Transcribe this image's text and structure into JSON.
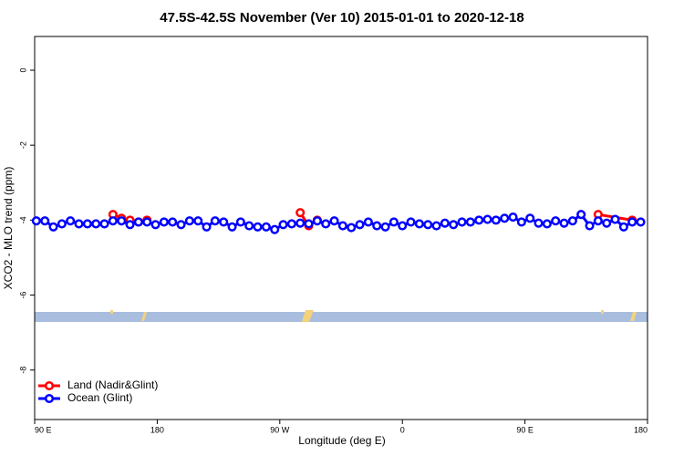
{
  "chart_data": {
    "type": "line",
    "title": "47.5S-42.5S November (Ver 10)   2015-01-01 to 2020-12-18",
    "x_label": "Longitude (deg E)",
    "y_label": "XCO2 - MLO trend (ppm)",
    "xlim": [
      90,
      540
    ],
    "ylim": [
      -9.32,
      0.9
    ],
    "xticks": [
      {
        "value": 90,
        "label": "90 E"
      },
      {
        "value": 180,
        "label": "180"
      },
      {
        "value": 270,
        "label": "90 W"
      },
      {
        "value": 360,
        "label": "0"
      },
      {
        "value": 450,
        "label": "90 E"
      },
      {
        "value": 540,
        "label": "180"
      }
    ],
    "yticks": [
      0,
      -2,
      -4,
      -6,
      -8
    ],
    "legend": "bottom-left",
    "series": [
      {
        "name": "Land (Nadir&Glint)",
        "color": "#ff0000",
        "x": [
          147.5,
          153.75,
          160,
          166.25,
          172.5,
          230,
          285,
          291.25,
          297.5,
          400,
          503.75,
          528.75
        ],
        "values": [
          -3.85,
          -3.95,
          -4.0,
          -4.05,
          -4.0,
          null,
          -3.8,
          -4.15,
          -4.0,
          null,
          -3.85,
          -4.0
        ]
      },
      {
        "name": "Ocean (Glint)",
        "color": "#0000ff",
        "x": [
          91.25,
          97.5,
          103.75,
          110,
          116.25,
          122.5,
          128.75,
          135,
          141.25,
          147.5,
          153.75,
          160,
          166.25,
          172.5,
          178.75,
          185,
          191.25,
          197.5,
          203.75,
          210,
          216.25,
          222.5,
          228.75,
          235,
          241.25,
          247.5,
          253.75,
          260,
          266.25,
          272.5,
          278.75,
          285,
          291.25,
          297.5,
          303.75,
          310,
          316.25,
          322.5,
          328.75,
          335,
          341.25,
          347.5,
          353.75,
          360,
          366.25,
          372.5,
          378.75,
          385,
          391.25,
          397.5,
          403.75,
          410,
          416.25,
          422.5,
          428.75,
          435,
          441.25,
          447.5,
          453.75,
          460,
          466.25,
          472.5,
          478.75,
          485,
          491.25,
          497.5,
          503.75,
          510,
          516.25,
          522.5,
          528.75,
          535
        ],
        "values": [
          -4.02,
          -4.02,
          -4.18,
          -4.1,
          -4.02,
          -4.1,
          -4.1,
          -4.1,
          -4.1,
          -4.02,
          -4.02,
          -4.12,
          -4.05,
          -4.05,
          -4.12,
          -4.05,
          -4.05,
          -4.12,
          -4.02,
          -4.02,
          -4.18,
          -4.02,
          -4.05,
          -4.18,
          -4.05,
          -4.15,
          -4.18,
          -4.18,
          -4.25,
          -4.12,
          -4.1,
          -4.08,
          -4.1,
          -4.02,
          -4.1,
          -4.02,
          -4.15,
          -4.2,
          -4.12,
          -4.05,
          -4.15,
          -4.18,
          -4.05,
          -4.15,
          -4.05,
          -4.1,
          -4.12,
          -4.15,
          -4.08,
          -4.12,
          -4.05,
          -4.05,
          -4.0,
          -3.98,
          -4.0,
          -3.95,
          -3.92,
          -4.05,
          -3.95,
          -4.08,
          -4.1,
          -4.02,
          -4.08,
          -4.02,
          -3.85,
          -4.15,
          -4.02,
          -4.08,
          -3.98,
          -4.18,
          -4.05,
          -4.05
        ]
      }
    ]
  }
}
